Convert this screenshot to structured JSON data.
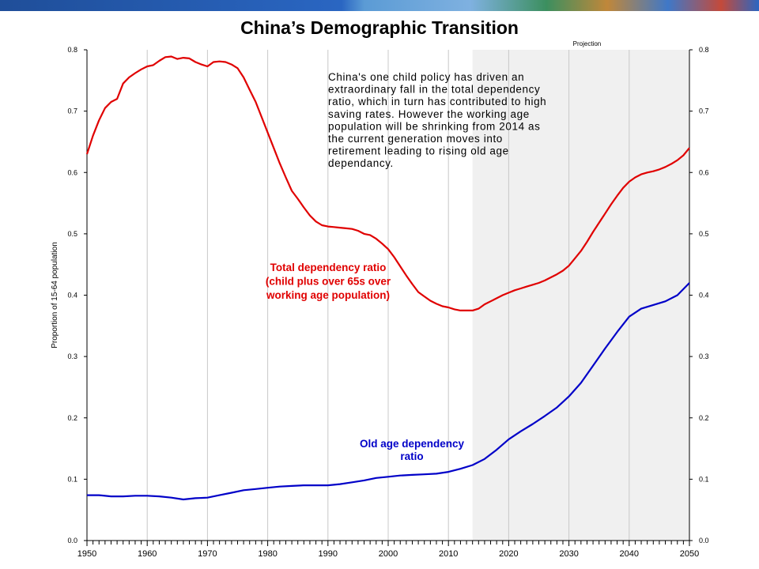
{
  "slide": {
    "title": "China’s Demographic Transition"
  },
  "chart_data": {
    "type": "line",
    "title": "",
    "xlabel": "",
    "ylabel": "Proportion of 15-64 population",
    "xlim": [
      1950,
      2050
    ],
    "ylim": [
      0,
      0.8
    ],
    "x_ticks": [
      1950,
      1960,
      1970,
      1980,
      1990,
      2000,
      2010,
      2020,
      2030,
      2040,
      2050
    ],
    "y_ticks": [
      "0.0",
      "0.1",
      "0.2",
      "0.3",
      "0.4",
      "0.5",
      "0.6",
      "0.7",
      "0.8"
    ],
    "right_axis_ticks": [
      "0.0",
      "0.1",
      "0.2",
      "0.3",
      "0.4",
      "0.5",
      "0.6",
      "0.7",
      "0.8"
    ],
    "grid": "vertical",
    "projection_shading": {
      "from": 2014,
      "to": 2050,
      "label": "Projection",
      "color": "#f0f0f0"
    },
    "annotation": [
      "China's one child policy has driven an",
      "extraordinary fall in the total dependency",
      "ratio, which in turn has contributed to high",
      "saving rates.  However the working age",
      "population will be shrinking from 2014 as",
      "the current generation moves into",
      "retirement leading to rising old age",
      "dependancy."
    ],
    "series": [
      {
        "key": "total",
        "color": "#e00000",
        "label_lines": [
          "Total dependency ratio",
          "(child plus over 65s over",
          "working age population)"
        ],
        "points": [
          [
            1950,
            0.63
          ],
          [
            1951,
            0.66
          ],
          [
            1952,
            0.685
          ],
          [
            1953,
            0.705
          ],
          [
            1954,
            0.715
          ],
          [
            1955,
            0.72
          ],
          [
            1956,
            0.745
          ],
          [
            1957,
            0.755
          ],
          [
            1958,
            0.762
          ],
          [
            1959,
            0.768
          ],
          [
            1960,
            0.773
          ],
          [
            1961,
            0.775
          ],
          [
            1962,
            0.782
          ],
          [
            1963,
            0.788
          ],
          [
            1964,
            0.789
          ],
          [
            1965,
            0.785
          ],
          [
            1966,
            0.787
          ],
          [
            1967,
            0.786
          ],
          [
            1968,
            0.78
          ],
          [
            1969,
            0.776
          ],
          [
            1970,
            0.773
          ],
          [
            1971,
            0.78
          ],
          [
            1972,
            0.781
          ],
          [
            1973,
            0.78
          ],
          [
            1974,
            0.776
          ],
          [
            1975,
            0.77
          ],
          [
            1976,
            0.755
          ],
          [
            1977,
            0.735
          ],
          [
            1978,
            0.715
          ],
          [
            1979,
            0.69
          ],
          [
            1980,
            0.665
          ],
          [
            1981,
            0.64
          ],
          [
            1982,
            0.615
          ],
          [
            1983,
            0.592
          ],
          [
            1984,
            0.57
          ],
          [
            1985,
            0.557
          ],
          [
            1986,
            0.543
          ],
          [
            1987,
            0.53
          ],
          [
            1988,
            0.52
          ],
          [
            1989,
            0.514
          ],
          [
            1990,
            0.512
          ],
          [
            1991,
            0.511
          ],
          [
            1992,
            0.51
          ],
          [
            1993,
            0.509
          ],
          [
            1994,
            0.508
          ],
          [
            1995,
            0.505
          ],
          [
            1996,
            0.5
          ],
          [
            1997,
            0.498
          ],
          [
            1998,
            0.492
          ],
          [
            1999,
            0.484
          ],
          [
            2000,
            0.475
          ],
          [
            2001,
            0.462
          ],
          [
            2002,
            0.447
          ],
          [
            2003,
            0.432
          ],
          [
            2004,
            0.418
          ],
          [
            2005,
            0.405
          ],
          [
            2006,
            0.398
          ],
          [
            2007,
            0.391
          ],
          [
            2008,
            0.386
          ],
          [
            2009,
            0.382
          ],
          [
            2010,
            0.38
          ],
          [
            2011,
            0.377
          ],
          [
            2012,
            0.375
          ],
          [
            2013,
            0.375
          ],
          [
            2014,
            0.375
          ],
          [
            2015,
            0.378
          ],
          [
            2016,
            0.385
          ],
          [
            2017,
            0.39
          ],
          [
            2018,
            0.395
          ],
          [
            2019,
            0.4
          ],
          [
            2020,
            0.404
          ],
          [
            2021,
            0.408
          ],
          [
            2022,
            0.411
          ],
          [
            2023,
            0.414
          ],
          [
            2024,
            0.417
          ],
          [
            2025,
            0.42
          ],
          [
            2026,
            0.424
          ],
          [
            2027,
            0.429
          ],
          [
            2028,
            0.434
          ],
          [
            2029,
            0.44
          ],
          [
            2030,
            0.448
          ],
          [
            2031,
            0.46
          ],
          [
            2032,
            0.472
          ],
          [
            2033,
            0.487
          ],
          [
            2034,
            0.503
          ],
          [
            2035,
            0.518
          ],
          [
            2036,
            0.533
          ],
          [
            2037,
            0.548
          ],
          [
            2038,
            0.562
          ],
          [
            2039,
            0.575
          ],
          [
            2040,
            0.585
          ],
          [
            2041,
            0.592
          ],
          [
            2042,
            0.597
          ],
          [
            2043,
            0.6
          ],
          [
            2044,
            0.602
          ],
          [
            2045,
            0.605
          ],
          [
            2046,
            0.609
          ],
          [
            2047,
            0.614
          ],
          [
            2048,
            0.62
          ],
          [
            2049,
            0.628
          ],
          [
            2050,
            0.64
          ]
        ]
      },
      {
        "key": "old_age",
        "color": "#0000c8",
        "label_lines": [
          "Old age dependency",
          "ratio"
        ],
        "points": [
          [
            1950,
            0.074
          ],
          [
            1952,
            0.074
          ],
          [
            1954,
            0.072
          ],
          [
            1956,
            0.072
          ],
          [
            1958,
            0.073
          ],
          [
            1960,
            0.073
          ],
          [
            1962,
            0.072
          ],
          [
            1964,
            0.07
          ],
          [
            1966,
            0.067
          ],
          [
            1968,
            0.069
          ],
          [
            1970,
            0.07
          ],
          [
            1972,
            0.074
          ],
          [
            1974,
            0.078
          ],
          [
            1976,
            0.082
          ],
          [
            1978,
            0.084
          ],
          [
            1980,
            0.086
          ],
          [
            1982,
            0.088
          ],
          [
            1984,
            0.089
          ],
          [
            1986,
            0.09
          ],
          [
            1988,
            0.09
          ],
          [
            1990,
            0.09
          ],
          [
            1992,
            0.092
          ],
          [
            1994,
            0.095
          ],
          [
            1996,
            0.098
          ],
          [
            1998,
            0.102
          ],
          [
            2000,
            0.104
          ],
          [
            2002,
            0.106
          ],
          [
            2004,
            0.107
          ],
          [
            2006,
            0.108
          ],
          [
            2008,
            0.109
          ],
          [
            2010,
            0.112
          ],
          [
            2012,
            0.117
          ],
          [
            2014,
            0.123
          ],
          [
            2016,
            0.133
          ],
          [
            2018,
            0.148
          ],
          [
            2020,
            0.165
          ],
          [
            2022,
            0.178
          ],
          [
            2024,
            0.19
          ],
          [
            2026,
            0.203
          ],
          [
            2028,
            0.217
          ],
          [
            2030,
            0.235
          ],
          [
            2032,
            0.257
          ],
          [
            2034,
            0.285
          ],
          [
            2036,
            0.313
          ],
          [
            2038,
            0.34
          ],
          [
            2040,
            0.365
          ],
          [
            2042,
            0.378
          ],
          [
            2044,
            0.384
          ],
          [
            2046,
            0.39
          ],
          [
            2048,
            0.4
          ],
          [
            2050,
            0.42
          ]
        ]
      }
    ]
  }
}
